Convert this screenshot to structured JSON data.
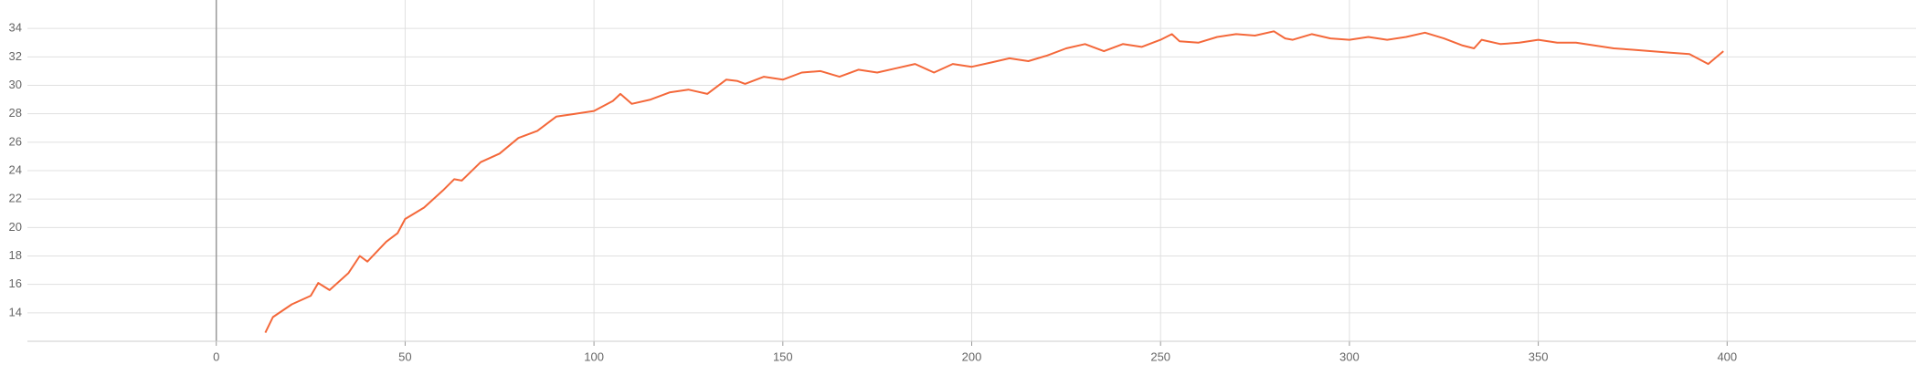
{
  "chart_data": {
    "type": "line",
    "x": [
      13,
      15,
      20,
      25,
      27,
      30,
      35,
      38,
      40,
      45,
      48,
      50,
      55,
      60,
      63,
      65,
      70,
      75,
      80,
      85,
      90,
      95,
      100,
      105,
      107,
      110,
      115,
      120,
      125,
      130,
      135,
      138,
      140,
      145,
      150,
      155,
      160,
      165,
      170,
      175,
      180,
      185,
      190,
      195,
      200,
      205,
      210,
      215,
      220,
      225,
      230,
      235,
      240,
      245,
      250,
      253,
      255,
      260,
      265,
      270,
      275,
      280,
      283,
      285,
      290,
      295,
      300,
      305,
      310,
      315,
      320,
      325,
      330,
      333,
      335,
      340,
      345,
      350,
      355,
      360,
      365,
      370,
      375,
      380,
      385,
      390,
      395,
      399
    ],
    "series": [
      {
        "name": "run",
        "color": "#f4683a",
        "values": [
          12.6,
          13.7,
          14.6,
          15.2,
          16.1,
          15.6,
          16.8,
          18.0,
          17.6,
          19.0,
          19.6,
          20.6,
          21.4,
          22.6,
          23.4,
          23.3,
          24.6,
          25.2,
          26.3,
          26.8,
          27.8,
          28.0,
          28.2,
          28.9,
          29.4,
          28.7,
          29.0,
          29.5,
          29.7,
          29.4,
          30.4,
          30.3,
          30.1,
          30.6,
          30.4,
          30.9,
          31.0,
          30.6,
          31.1,
          30.9,
          31.2,
          31.5,
          30.9,
          31.5,
          31.3,
          31.6,
          31.9,
          31.7,
          32.1,
          32.6,
          32.9,
          32.4,
          32.9,
          32.7,
          33.2,
          33.6,
          33.1,
          33.0,
          33.4,
          33.6,
          33.5,
          33.8,
          33.3,
          33.2,
          33.6,
          33.3,
          33.2,
          33.4,
          33.2,
          33.4,
          33.7,
          33.3,
          32.8,
          32.6,
          33.2,
          32.9,
          33.0,
          33.2,
          33.0,
          33.0,
          32.8,
          32.6,
          32.5,
          32.4,
          32.3,
          32.2,
          31.5,
          32.4
        ]
      }
    ],
    "xlim": [
      -50,
      450
    ],
    "ylim": [
      12,
      36
    ],
    "xticks": [
      0,
      50,
      100,
      150,
      200,
      250,
      300,
      350,
      400
    ],
    "yticks": [
      14,
      16,
      18,
      20,
      22,
      24,
      26,
      28,
      30,
      32,
      34
    ],
    "grid": true
  }
}
